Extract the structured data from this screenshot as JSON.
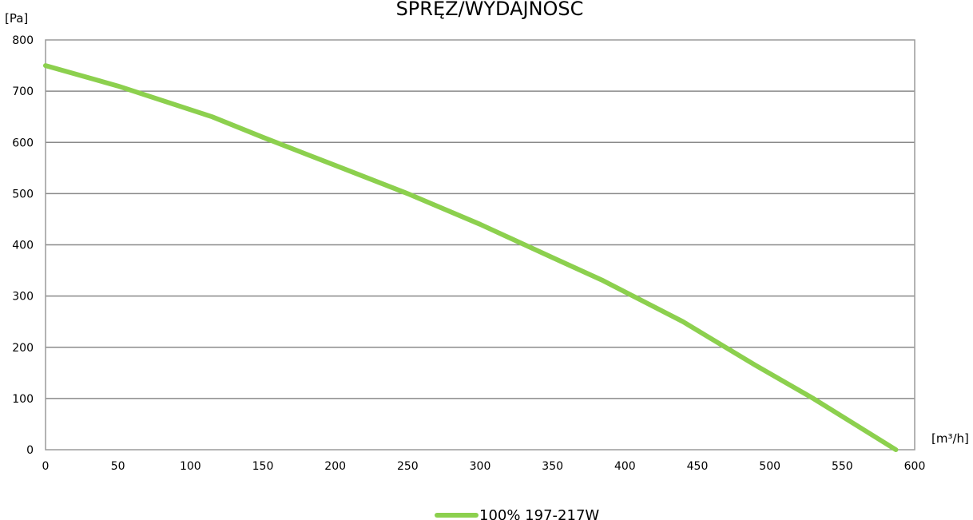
{
  "chart_data": {
    "type": "line",
    "title": "SPRĘŻ/WYDAJNOŚĆ",
    "xlabel": "[m³/h]",
    "ylabel": "[Pa]",
    "xlim": [
      0,
      600
    ],
    "ylim": [
      0,
      800
    ],
    "x_ticks": [
      "0",
      "50",
      "100",
      "150",
      "200",
      "250",
      "300",
      "350",
      "400",
      "450",
      "500",
      "550",
      "600"
    ],
    "y_ticks": [
      "0",
      "100",
      "200",
      "300",
      "400",
      "500",
      "600",
      "700",
      "800"
    ],
    "grid": "horizontal",
    "legend_position": "bottom-center",
    "series": [
      {
        "name": "100% 197-217W",
        "color": "#8cd04e",
        "x": [
          0,
          50,
          115,
          150,
          200,
          250,
          300,
          350,
          385,
          440,
          490,
          530,
          587
        ],
        "y": [
          750,
          710,
          650,
          610,
          555,
          500,
          440,
          375,
          330,
          250,
          165,
          100,
          0
        ]
      }
    ]
  }
}
